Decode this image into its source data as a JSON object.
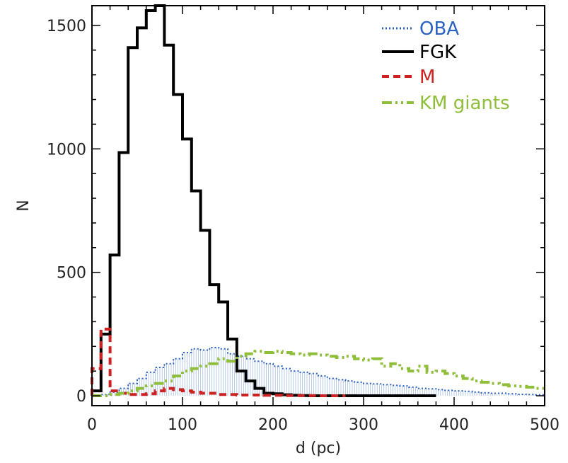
{
  "chart_data": {
    "type": "line",
    "title": "",
    "xlabel": "d (pc)",
    "ylabel": "N",
    "xlim": [
      0,
      500
    ],
    "ylim": [
      -40,
      1580
    ],
    "xticks": [
      0,
      100,
      200,
      300,
      400,
      500
    ],
    "yticks": [
      0,
      500,
      1000,
      1500
    ],
    "grid": false,
    "legend_position": "top-right",
    "bin_width": 10,
    "series": [
      {
        "name": "OBA",
        "color": "#2b62c0",
        "dash": "dotted",
        "step": true,
        "x": [
          0,
          10,
          20,
          30,
          40,
          50,
          60,
          70,
          80,
          90,
          100,
          110,
          120,
          130,
          140,
          150,
          160,
          170,
          180,
          190,
          200,
          210,
          220,
          230,
          240,
          250,
          260,
          270,
          280,
          290,
          300,
          310,
          320,
          330,
          340,
          350,
          360,
          370,
          380,
          390,
          400,
          410,
          420,
          430,
          440,
          450,
          460,
          470,
          480,
          490
        ],
        "y": [
          0,
          5,
          15,
          30,
          50,
          70,
          95,
          115,
          130,
          150,
          175,
          190,
          185,
          195,
          190,
          170,
          160,
          150,
          140,
          130,
          120,
          110,
          100,
          95,
          90,
          80,
          70,
          65,
          60,
          55,
          50,
          48,
          45,
          42,
          40,
          35,
          30,
          28,
          25,
          22,
          20,
          18,
          15,
          12,
          10,
          10,
          8,
          6,
          5,
          4
        ]
      },
      {
        "name": "FGK",
        "color": "#000000",
        "dash": "solid",
        "step": true,
        "x": [
          0,
          10,
          20,
          30,
          40,
          50,
          60,
          70,
          80,
          90,
          100,
          110,
          120,
          130,
          140,
          150,
          160,
          170,
          180,
          190,
          200,
          210,
          220,
          230,
          240,
          250,
          260,
          270,
          280,
          290,
          300,
          310,
          320,
          330,
          340,
          350,
          360,
          370
        ],
        "y": [
          20,
          250,
          570,
          985,
          1410,
          1490,
          1560,
          1580,
          1420,
          1220,
          1040,
          830,
          670,
          450,
          380,
          230,
          100,
          60,
          30,
          10,
          8,
          4,
          2,
          1,
          0,
          0,
          0,
          0,
          0,
          0,
          0,
          0,
          0,
          0,
          0,
          0,
          0,
          0
        ]
      },
      {
        "name": "M",
        "color": "#cc2222",
        "dash": "dashed",
        "step": true,
        "x": [
          0,
          10,
          20,
          30,
          40,
          50,
          60,
          70,
          80,
          90,
          100,
          110,
          120,
          130,
          140,
          150,
          160,
          170,
          180,
          190,
          200,
          210,
          220,
          230,
          240,
          250,
          260,
          270
        ],
        "y": [
          110,
          270,
          20,
          10,
          5,
          5,
          8,
          20,
          30,
          25,
          20,
          15,
          10,
          10,
          5,
          5,
          3,
          3,
          3,
          2,
          2,
          1,
          1,
          1,
          1,
          0,
          0,
          0
        ]
      },
      {
        "name": "KM giants",
        "color": "#8fbf3a",
        "dash": "dashdotdot",
        "step": true,
        "x": [
          0,
          10,
          20,
          30,
          40,
          50,
          60,
          70,
          80,
          90,
          100,
          110,
          120,
          130,
          140,
          150,
          160,
          170,
          180,
          190,
          200,
          210,
          220,
          230,
          240,
          250,
          260,
          270,
          280,
          290,
          300,
          310,
          320,
          330,
          340,
          350,
          360,
          370,
          380,
          390,
          400,
          410,
          420,
          430,
          440,
          450,
          460,
          470,
          480,
          490
        ],
        "y": [
          0,
          0,
          5,
          10,
          20,
          30,
          40,
          50,
          60,
          80,
          100,
          110,
          120,
          130,
          150,
          140,
          160,
          170,
          180,
          175,
          180,
          175,
          170,
          165,
          170,
          165,
          160,
          155,
          160,
          150,
          145,
          150,
          120,
          130,
          110,
          100,
          120,
          95,
          100,
          90,
          80,
          70,
          60,
          55,
          50,
          45,
          40,
          38,
          35,
          30
        ]
      }
    ]
  }
}
